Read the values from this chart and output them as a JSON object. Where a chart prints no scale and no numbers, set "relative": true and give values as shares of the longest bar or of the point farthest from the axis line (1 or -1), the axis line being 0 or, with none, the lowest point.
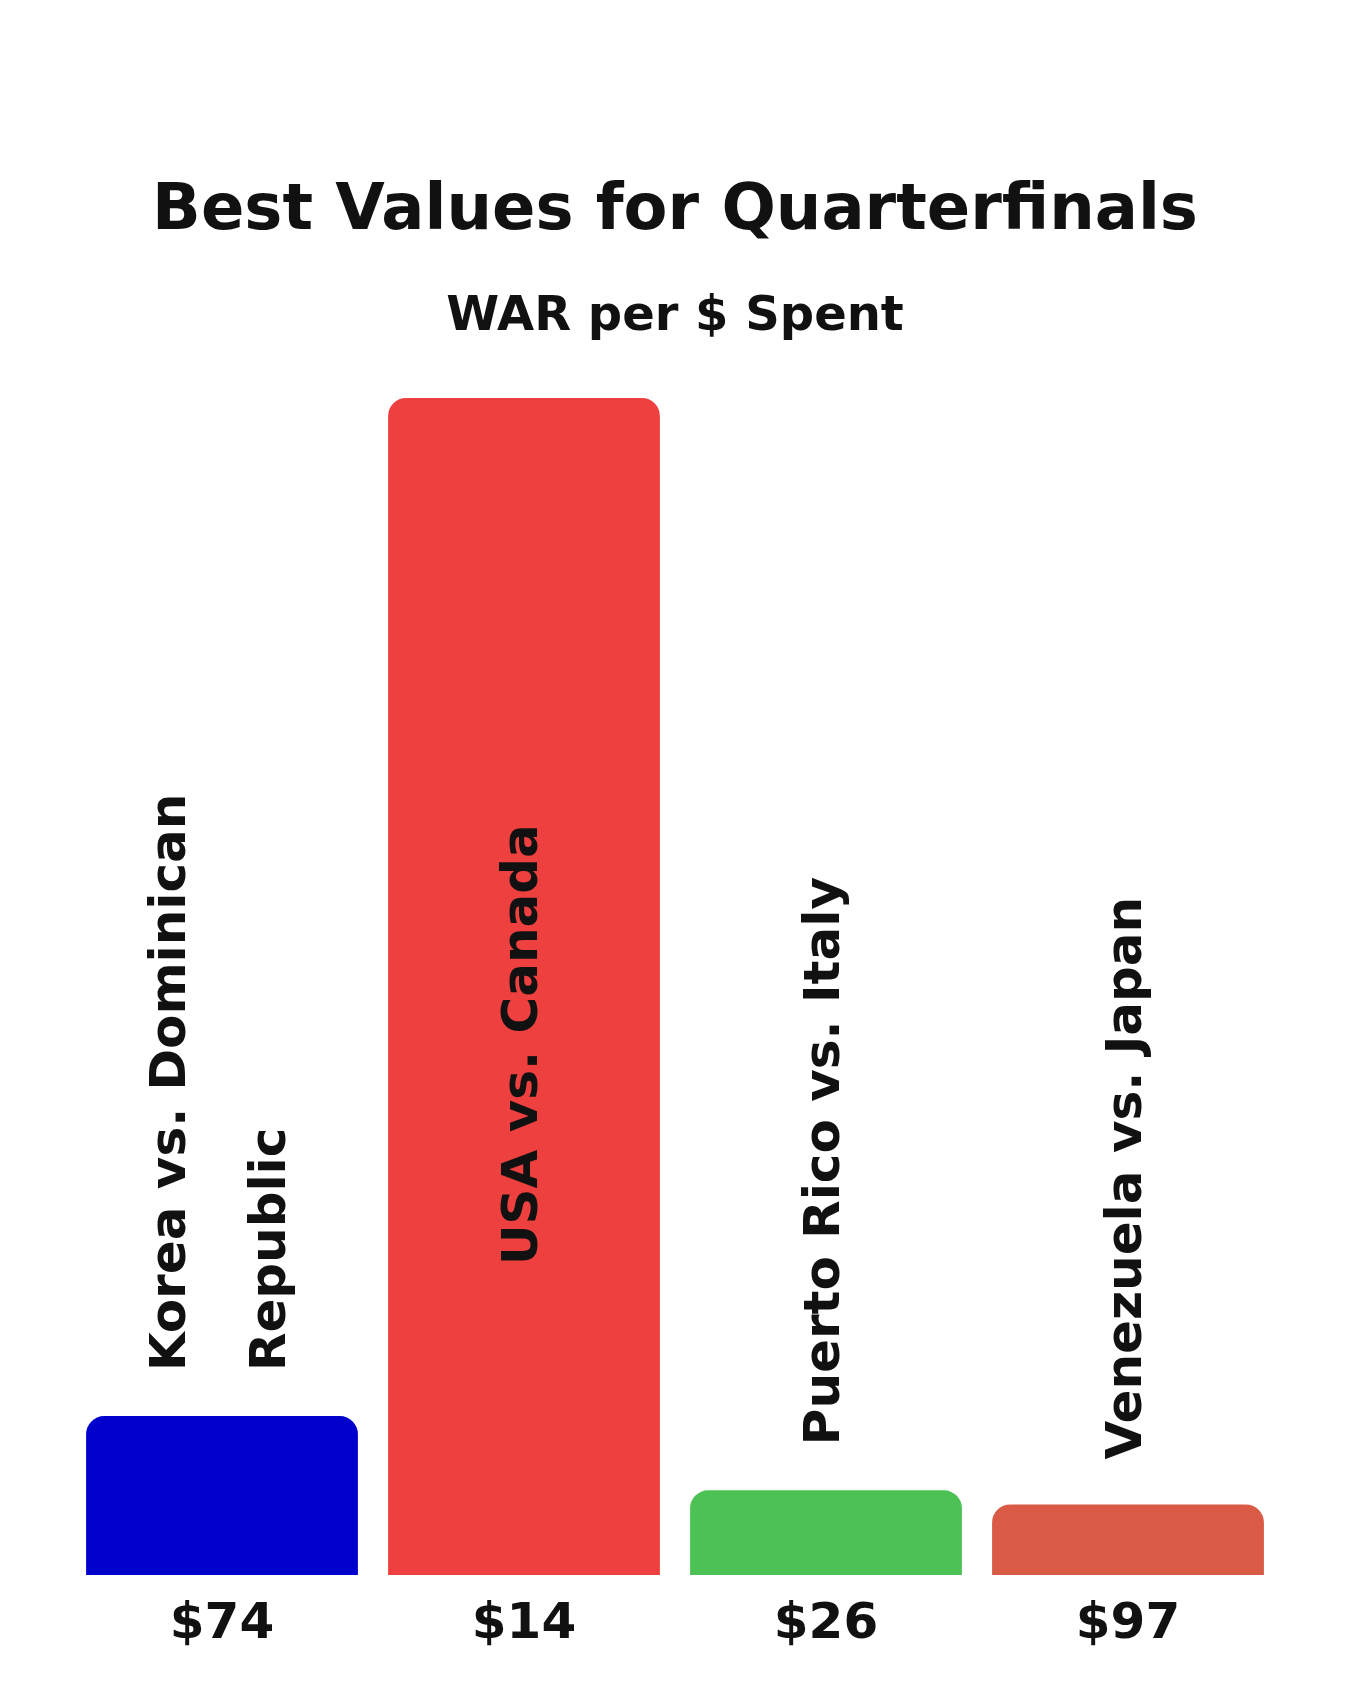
{
  "chart_data": {
    "type": "bar",
    "title": "Best Values for Quarterfinals",
    "subtitle": "WAR per $ Spent",
    "categories": [
      "Korea vs. Dominican Republic",
      "USA vs. Canada",
      "Puerto Rico vs. Italy",
      "Venezuela vs. Japan"
    ],
    "values": [
      0.135,
      1,
      0.072,
      0.06
    ],
    "colors": [
      "#0000cc",
      "#ef4040",
      "#4cc254",
      "#d95a45"
    ],
    "relative": true,
    "annotations": [
      "$74",
      "$14",
      "$26",
      "$97"
    ]
  }
}
